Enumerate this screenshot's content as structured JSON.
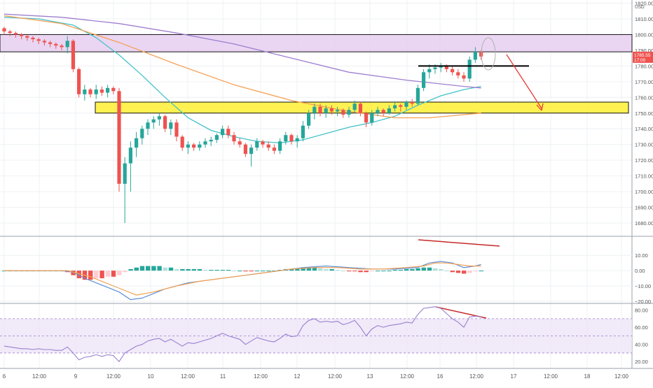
{
  "chart_data": [
    {
      "type": "candlestick",
      "pane": "price",
      "currency": "USD",
      "y_ticks": [
        1680,
        1690,
        1700,
        1710,
        1720,
        1730,
        1740,
        1750,
        1760,
        1770,
        1780,
        1790,
        1800,
        1810,
        1820
      ],
      "x_ticks": [
        "6",
        "12:00",
        "9",
        "12:00",
        "10",
        "12:00",
        "11",
        "12:00",
        "12",
        "12:00",
        "13",
        "12:00",
        "16",
        "12:00",
        "17",
        "12:00",
        "18",
        "12:00"
      ],
      "ylim": [
        1672,
        1822
      ],
      "last_price_label": "1785.55",
      "countdown_label": "17:00",
      "candles": [
        [
          1804,
          1805,
          1800,
          1802
        ],
        [
          1802,
          1803,
          1799,
          1801
        ],
        [
          1801,
          1802,
          1798,
          1800
        ],
        [
          1800,
          1801,
          1797,
          1799
        ],
        [
          1799,
          1800,
          1796,
          1798
        ],
        [
          1798,
          1799,
          1795,
          1797
        ],
        [
          1797,
          1798,
          1794,
          1796
        ],
        [
          1796,
          1797,
          1793,
          1795
        ],
        [
          1795,
          1796,
          1792,
          1794
        ],
        [
          1794,
          1795,
          1791,
          1793
        ],
        [
          1793,
          1794,
          1790,
          1792
        ],
        [
          1792,
          1799,
          1788,
          1796
        ],
        [
          1796,
          1797,
          1776,
          1778
        ],
        [
          1778,
          1779,
          1760,
          1762
        ],
        [
          1762,
          1768,
          1758,
          1765
        ],
        [
          1765,
          1766,
          1760,
          1762
        ],
        [
          1762,
          1768,
          1759,
          1765
        ],
        [
          1765,
          1767,
          1761,
          1763
        ],
        [
          1763,
          1768,
          1760,
          1766
        ],
        [
          1766,
          1767,
          1762,
          1764
        ],
        [
          1764,
          1766,
          1700,
          1705
        ],
        [
          1705,
          1722,
          1680,
          1718
        ],
        [
          1718,
          1732,
          1700,
          1728
        ],
        [
          1728,
          1738,
          1722,
          1734
        ],
        [
          1734,
          1742,
          1730,
          1740
        ],
        [
          1740,
          1746,
          1736,
          1744
        ],
        [
          1744,
          1748,
          1740,
          1746
        ],
        [
          1746,
          1750,
          1742,
          1748
        ],
        [
          1748,
          1749,
          1738,
          1740
        ],
        [
          1740,
          1746,
          1736,
          1744
        ],
        [
          1744,
          1746,
          1732,
          1735
        ],
        [
          1735,
          1736,
          1726,
          1728
        ],
        [
          1728,
          1732,
          1724,
          1730
        ],
        [
          1730,
          1731,
          1726,
          1728
        ],
        [
          1728,
          1732,
          1726,
          1730
        ],
        [
          1730,
          1734,
          1728,
          1732
        ],
        [
          1732,
          1735,
          1729,
          1733
        ],
        [
          1733,
          1737,
          1731,
          1736
        ],
        [
          1736,
          1742,
          1734,
          1740
        ],
        [
          1740,
          1742,
          1734,
          1736
        ],
        [
          1736,
          1738,
          1730,
          1732
        ],
        [
          1732,
          1734,
          1728,
          1730
        ],
        [
          1730,
          1731,
          1722,
          1724
        ],
        [
          1724,
          1730,
          1716,
          1728
        ],
        [
          1728,
          1734,
          1726,
          1732
        ],
        [
          1732,
          1733,
          1728,
          1730
        ],
        [
          1730,
          1732,
          1726,
          1728
        ],
        [
          1728,
          1730,
          1724,
          1726
        ],
        [
          1726,
          1734,
          1724,
          1732
        ],
        [
          1732,
          1738,
          1730,
          1736
        ],
        [
          1736,
          1737,
          1730,
          1732
        ],
        [
          1732,
          1736,
          1728,
          1734
        ],
        [
          1734,
          1745,
          1732,
          1742
        ],
        [
          1742,
          1752,
          1740,
          1750
        ],
        [
          1750,
          1756,
          1746,
          1754
        ],
        [
          1754,
          1756,
          1748,
          1750
        ],
        [
          1750,
          1755,
          1747,
          1753
        ],
        [
          1753,
          1755,
          1749,
          1751
        ],
        [
          1751,
          1754,
          1748,
          1752
        ],
        [
          1752,
          1753,
          1747,
          1749
        ],
        [
          1749,
          1754,
          1747,
          1752
        ],
        [
          1752,
          1758,
          1750,
          1756
        ],
        [
          1756,
          1757,
          1748,
          1750
        ],
        [
          1750,
          1751,
          1741,
          1744
        ],
        [
          1744,
          1752,
          1742,
          1750
        ],
        [
          1750,
          1754,
          1748,
          1752
        ],
        [
          1752,
          1753,
          1748,
          1750
        ],
        [
          1750,
          1755,
          1749,
          1753
        ],
        [
          1753,
          1757,
          1751,
          1755
        ],
        [
          1755,
          1756,
          1751,
          1754
        ],
        [
          1754,
          1758,
          1752,
          1757
        ],
        [
          1757,
          1759,
          1754,
          1756
        ],
        [
          1756,
          1768,
          1755,
          1766
        ],
        [
          1766,
          1778,
          1764,
          1776
        ],
        [
          1776,
          1781,
          1772,
          1778
        ],
        [
          1778,
          1781,
          1775,
          1779
        ],
        [
          1779,
          1782,
          1776,
          1780
        ],
        [
          1780,
          1781,
          1776,
          1778
        ],
        [
          1778,
          1780,
          1774,
          1776
        ],
        [
          1776,
          1778,
          1772,
          1774
        ],
        [
          1774,
          1776,
          1770,
          1772
        ],
        [
          1772,
          1786,
          1770,
          1784
        ],
        [
          1784,
          1792,
          1782,
          1789
        ],
        [
          1789,
          1790,
          1784,
          1786
        ]
      ],
      "zones": [
        {
          "name": "resistance-zone",
          "y_top": 1800,
          "y_bottom": 1789,
          "color": "#e6cff0"
        },
        {
          "name": "support-zone",
          "y_top": 1757,
          "y_bottom": 1750,
          "color": "#ffee33"
        }
      ],
      "level_line": {
        "y": 1780,
        "color": "#000000"
      },
      "series": [
        {
          "color": "#44c2c8",
          "points": [
            [
              0,
              1811
            ],
            [
              6,
              1810
            ],
            [
              12,
              1806
            ],
            [
              16,
              1798
            ],
            [
              20,
              1787
            ],
            [
              24,
              1774
            ],
            [
              28,
              1760
            ],
            [
              32,
              1747
            ],
            [
              36,
              1739
            ],
            [
              40,
              1735
            ],
            [
              44,
              1732
            ],
            [
              48,
              1731
            ],
            [
              52,
              1733
            ],
            [
              56,
              1737
            ],
            [
              60,
              1741
            ],
            [
              64,
              1744
            ],
            [
              68,
              1748
            ],
            [
              72,
              1755
            ],
            [
              76,
              1761
            ],
            [
              80,
              1765
            ],
            [
              83,
              1767
            ]
          ]
        },
        {
          "color": "#9e7fcf",
          "points": [
            [
              0,
              1813
            ],
            [
              10,
              1811
            ],
            [
              20,
              1807
            ],
            [
              30,
              1801
            ],
            [
              40,
              1794
            ],
            [
              50,
              1785
            ],
            [
              60,
              1776
            ],
            [
              70,
              1771
            ],
            [
              80,
              1767
            ],
            [
              83,
              1766
            ]
          ]
        },
        {
          "color": "#f5a052",
          "points": [
            [
              0,
              1812
            ],
            [
              10,
              1807
            ],
            [
              20,
              1795
            ],
            [
              30,
              1781
            ],
            [
              40,
              1768
            ],
            [
              50,
              1758
            ],
            [
              60,
              1751
            ],
            [
              68,
              1747
            ],
            [
              74,
              1747
            ],
            [
              80,
              1749
            ],
            [
              83,
              1750
            ]
          ]
        }
      ]
    },
    {
      "type": "bar",
      "pane": "macd",
      "y_ticks": [
        {
          "v": 10,
          "label": "10.00"
        },
        {
          "v": 0,
          "label": "0.00"
        },
        {
          "v": -10,
          "label": "−10.00"
        },
        {
          "v": -20,
          "label": "−20.00"
        }
      ],
      "ylim": [
        -21,
        22
      ],
      "histogram": [
        0,
        0,
        0,
        0,
        0,
        0,
        0,
        0,
        0,
        0,
        0,
        -1,
        -3,
        -5,
        -6,
        -6,
        -5,
        -5,
        -4,
        -4,
        -3,
        -1,
        1,
        2,
        3,
        3,
        3,
        3,
        2,
        2,
        1,
        1,
        1,
        1,
        1,
        0.5,
        0.5,
        0.5,
        0.5,
        0.5,
        0,
        0,
        -0.5,
        -0.5,
        0,
        0,
        0,
        0,
        0.5,
        1,
        1,
        1,
        1.5,
        2,
        2,
        1.5,
        1,
        1,
        0.5,
        0,
        -0.5,
        -0.5,
        -1,
        -1,
        -0.5,
        0,
        0,
        0,
        0.5,
        0.5,
        1,
        1,
        1.5,
        2,
        2,
        1.5,
        1,
        0,
        -1,
        -1.5,
        -2,
        -1.5,
        -0.5,
        0
      ],
      "series": [
        {
          "color": "#5b8fd9",
          "points": [
            [
              0,
              0
            ],
            [
              10,
              0
            ],
            [
              12,
              -1
            ],
            [
              14,
              -5
            ],
            [
              16,
              -8
            ],
            [
              18,
              -11
            ],
            [
              20,
              -14
            ],
            [
              22,
              -19
            ],
            [
              24,
              -18
            ],
            [
              28,
              -12
            ],
            [
              32,
              -8
            ],
            [
              36,
              -6
            ],
            [
              40,
              -4
            ],
            [
              44,
              -2
            ],
            [
              48,
              0
            ],
            [
              52,
              2
            ],
            [
              56,
              3
            ],
            [
              60,
              2
            ],
            [
              64,
              1
            ],
            [
              68,
              1
            ],
            [
              72,
              2
            ],
            [
              74,
              5
            ],
            [
              76,
              6
            ],
            [
              78,
              5
            ],
            [
              80,
              2
            ],
            [
              82,
              3
            ],
            [
              83,
              4
            ]
          ]
        },
        {
          "color": "#f5a052",
          "points": [
            [
              0,
              0
            ],
            [
              11,
              0
            ],
            [
              13,
              -2
            ],
            [
              15,
              -4
            ],
            [
              17,
              -7
            ],
            [
              19,
              -10
            ],
            [
              21,
              -13
            ],
            [
              23,
              -16
            ],
            [
              26,
              -14
            ],
            [
              30,
              -10
            ],
            [
              34,
              -7
            ],
            [
              38,
              -5
            ],
            [
              42,
              -3
            ],
            [
              46,
              -1
            ],
            [
              50,
              1
            ],
            [
              54,
              2
            ],
            [
              58,
              2
            ],
            [
              62,
              1
            ],
            [
              66,
              1
            ],
            [
              70,
              2
            ],
            [
              73,
              3
            ],
            [
              75,
              5
            ],
            [
              77,
              5
            ],
            [
              79,
              4
            ],
            [
              81,
              3
            ],
            [
              83,
              3
            ]
          ]
        }
      ]
    },
    {
      "type": "line",
      "pane": "rsi",
      "y_ticks": [
        20,
        40,
        60,
        80
      ],
      "ylim": [
        12,
        87
      ],
      "band": [
        30,
        70
      ],
      "series": [
        {
          "color": "#9a80cf",
          "values": [
            38,
            37,
            36,
            35,
            35,
            34,
            35,
            34,
            34,
            33,
            33,
            37,
            30,
            22,
            25,
            26,
            28,
            26,
            28,
            27,
            20,
            30,
            34,
            38,
            40,
            44,
            46,
            47,
            43,
            46,
            42,
            38,
            42,
            41,
            43,
            45,
            47,
            50,
            53,
            50,
            48,
            46,
            40,
            44,
            48,
            46,
            44,
            43,
            47,
            52,
            49,
            50,
            62,
            68,
            70,
            66,
            67,
            66,
            67,
            63,
            65,
            68,
            60,
            50,
            58,
            62,
            60,
            62,
            63,
            64,
            66,
            65,
            75,
            82,
            83,
            84,
            82,
            76,
            70,
            66,
            60,
            72,
            73,
            72
          ]
        }
      ]
    }
  ]
}
